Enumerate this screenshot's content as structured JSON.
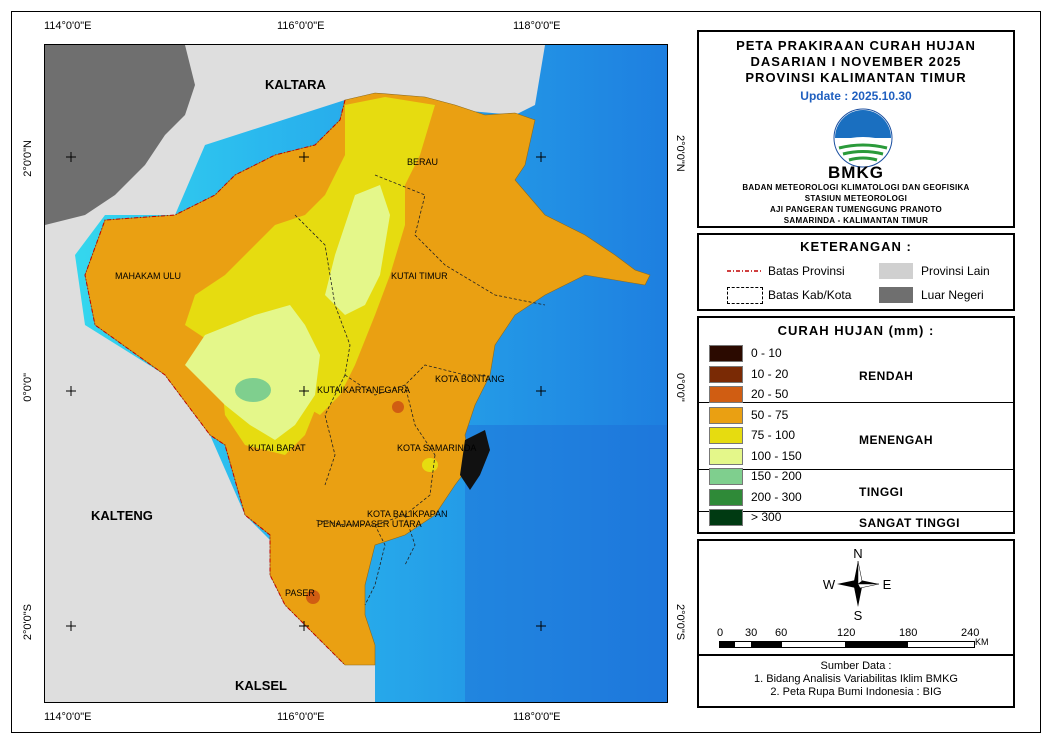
{
  "map": {
    "coords_top": [
      "114°0'0\"E",
      "116°0'0\"E",
      "118°0'0\"E"
    ],
    "coords_bottom": [
      "114°0'0\"E",
      "116°0'0\"E",
      "118°0'0\"E"
    ],
    "coords_left": [
      "2°0'0\"N",
      "0°0'0\"",
      "2°0'0\"S"
    ],
    "coords_right": [
      "2°0'0\"N",
      "0°0'0\"",
      "2°0'0\"S"
    ],
    "provinces": {
      "kaltara": "KALTARA",
      "kalteng": "KALTENG",
      "kalsel": "KALSEL"
    },
    "regencies": {
      "berau": "BERAU",
      "mahakam_ulu": "MAHAKAM ULU",
      "kutai_timur": "KUTAI TIMUR",
      "kutai_kartanegara": "KUTAIKARTANEGARA",
      "kota_bontang": "KOTA BONTANG",
      "kutai_barat": "KUTAI BARAT",
      "kota_samarinda": "KOTA SAMARINDA",
      "kota_balikpapan": "KOTA BALIKPAPAN",
      "penajam": "PENAJAMPASER UTARA",
      "paser": "PASER"
    },
    "colors": {
      "sea_deep": "#1e7fe0",
      "sea_mid": "#2ab8ee",
      "sea_shallow": "#36dcee",
      "land_other": "#dedede",
      "foreign": "#6f6f6f",
      "c50_75": "#eaa012",
      "c75_100": "#e6dc10",
      "c100_150": "#e4f78a",
      "c150_200": "#7fcf8e",
      "c20_50": "#d05d12"
    }
  },
  "title": {
    "lines": [
      "PETA PRAKIRAAN CURAH HUJAN",
      "DASARIAN I NOVEMBER 2025",
      "PROVINSI KALIMANTAN TIMUR"
    ],
    "update": "Update : 2025.10.30",
    "logo_text": "BMKG",
    "institution": [
      "BADAN METEOROLOGI KLIMATOLOGI DAN GEOFISIKA",
      "STASIUN METEOROLOGI",
      "AJI PANGERAN TUMENGGUNG PRANOTO",
      "SAMARINDA - KALIMANTAN TIMUR"
    ]
  },
  "keterangan": {
    "title": "KETERANGAN :",
    "items": [
      "Batas Provinsi",
      "Batas Kab/Kota",
      "Provinsi Lain",
      "Luar Negeri"
    ]
  },
  "curah_hujan": {
    "title": "CURAH HUJAN (mm) :",
    "classes": [
      {
        "label": "0 - 10",
        "color": "#2b0a00"
      },
      {
        "label": "10 - 20",
        "color": "#7a2a05"
      },
      {
        "label": "20 - 50",
        "color": "#d05d12"
      },
      {
        "label": "50 - 75",
        "color": "#eaa012"
      },
      {
        "label": "75 - 100",
        "color": "#e6dc10"
      },
      {
        "label": "100 - 150",
        "color": "#e4f78a"
      },
      {
        "label": "150 - 200",
        "color": "#7fcf8e"
      },
      {
        "label": "200 - 300",
        "color": "#2f8a38"
      },
      {
        "label": "> 300",
        "color": "#003a12"
      }
    ],
    "categories": [
      "RENDAH",
      "MENENGAH",
      "TINGGI",
      "SANGAT TINGGI"
    ]
  },
  "compass": {
    "n": "N",
    "s": "S",
    "e": "E",
    "w": "W"
  },
  "scale": {
    "ticks": [
      "0",
      "30",
      "60",
      "120",
      "180",
      "240"
    ],
    "unit": "KM"
  },
  "source": {
    "title": "Sumber Data :",
    "lines": [
      "1. Bidang Analisis Variabilitas Iklim BMKG",
      "2. Peta Rupa Bumi Indonesia : BIG"
    ]
  }
}
